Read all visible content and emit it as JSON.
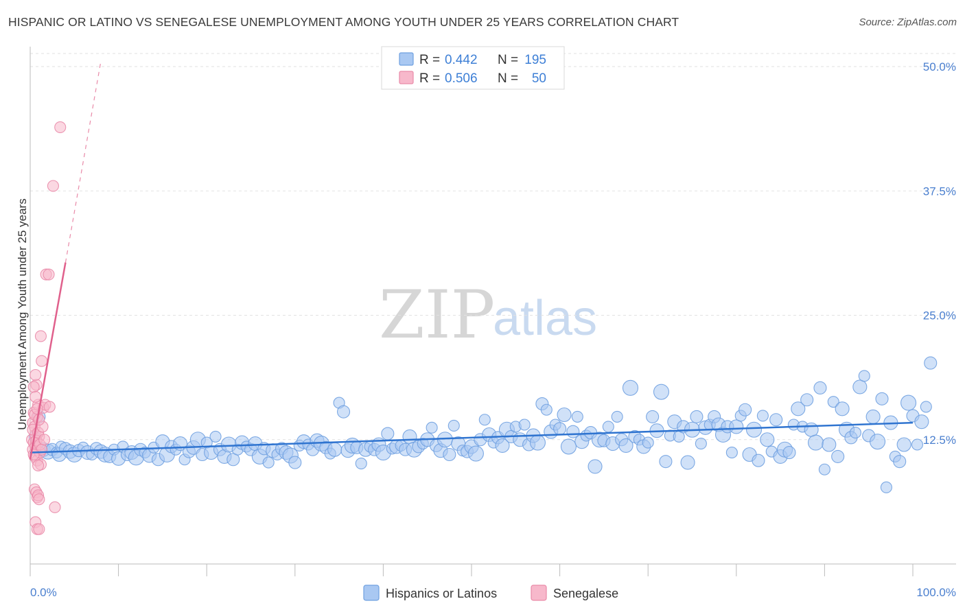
{
  "title": "HISPANIC OR LATINO VS SENEGALESE UNEMPLOYMENT AMONG YOUTH UNDER 25 YEARS CORRELATION CHART",
  "source": "Source: ZipAtlas.com",
  "watermark": {
    "zip": "ZIP",
    "atlas": "atlas"
  },
  "legend": {
    "r_label": "R =",
    "n_label": "N =",
    "rows": [
      {
        "r": "0.442",
        "n": "195",
        "color": "#a9c8f2",
        "stroke": "#6fa0e0"
      },
      {
        "r": "0.506",
        "n": "50",
        "color": "#f7b8cb",
        "stroke": "#e98aa8"
      }
    ]
  },
  "bottom_legend": [
    "Hispanics or Latinos",
    "Senegalese"
  ],
  "chart_data": {
    "type": "scatter",
    "title": "HISPANIC OR LATINO VS SENEGALESE UNEMPLOYMENT AMONG YOUTH UNDER 25 YEARS CORRELATION CHART",
    "xlabel": "",
    "ylabel": "Unemployment Among Youth under 25 years",
    "xlim": [
      0,
      100
    ],
    "ylim": [
      0,
      50
    ],
    "x_tick_labels": [
      "0.0%",
      "100.0%"
    ],
    "y_ticks": [
      12.5,
      25.0,
      37.5,
      50.0
    ],
    "y_tick_labels": [
      "12.5%",
      "25.0%",
      "37.5%",
      "50.0%"
    ],
    "series": [
      {
        "name": "Hispanics or Latinos",
        "color": "#6fa0e0",
        "fill": "#a9c8f2",
        "R": 0.442,
        "N": 195,
        "trend": {
          "x0": 0,
          "y0": 11.2,
          "x1": 100,
          "y1": 14.2
        },
        "points": [
          [
            0.5,
            12.8
          ],
          [
            1,
            14.8
          ],
          [
            1.5,
            11.5
          ],
          [
            2,
            11.3
          ],
          [
            2.5,
            11.5
          ],
          [
            3,
            11.2
          ],
          [
            3.3,
            11.0
          ],
          [
            3.5,
            11.8
          ],
          [
            4,
            11.6
          ],
          [
            4.5,
            11.3
          ],
          [
            5,
            11.0
          ],
          [
            5.5,
            11.4
          ],
          [
            6,
            11.7
          ],
          [
            6.5,
            11.2
          ],
          [
            7,
            11.0
          ],
          [
            7.5,
            11.6
          ],
          [
            8,
            11.3
          ],
          [
            8.5,
            11.0
          ],
          [
            9,
            10.8
          ],
          [
            9.5,
            11.5
          ],
          [
            10,
            10.6
          ],
          [
            10.5,
            11.8
          ],
          [
            11,
            11.0
          ],
          [
            11.5,
            11.2
          ],
          [
            12,
            10.7
          ],
          [
            12.5,
            11.5
          ],
          [
            13,
            11.2
          ],
          [
            13.5,
            10.9
          ],
          [
            14,
            11.7
          ],
          [
            14.5,
            10.5
          ],
          [
            15,
            12.3
          ],
          [
            15.5,
            11.0
          ],
          [
            16,
            11.8
          ],
          [
            16.5,
            11.5
          ],
          [
            17,
            12.1
          ],
          [
            17.5,
            10.5
          ],
          [
            18,
            11.3
          ],
          [
            18.5,
            11.7
          ],
          [
            19,
            12.5
          ],
          [
            19.5,
            11.0
          ],
          [
            20,
            12.2
          ],
          [
            20.5,
            11.2
          ],
          [
            21,
            12.8
          ],
          [
            21.5,
            11.5
          ],
          [
            22,
            10.8
          ],
          [
            22.5,
            12.0
          ],
          [
            23,
            10.5
          ],
          [
            23.5,
            11.5
          ],
          [
            24,
            12.2
          ],
          [
            24.5,
            11.8
          ],
          [
            25,
            11.5
          ],
          [
            25.5,
            12.1
          ],
          [
            26,
            10.8
          ],
          [
            26.5,
            11.6
          ],
          [
            27,
            10.2
          ],
          [
            27.5,
            11.4
          ],
          [
            28,
            11.0
          ],
          [
            28.5,
            11.6
          ],
          [
            29,
            11.2
          ],
          [
            29.5,
            10.9
          ],
          [
            30,
            10.2
          ],
          [
            30.5,
            11.9
          ],
          [
            31,
            12.3
          ],
          [
            31.5,
            12.0
          ],
          [
            32,
            11.5
          ],
          [
            32.5,
            12.4
          ],
          [
            33,
            12.1
          ],
          [
            33.5,
            11.7
          ],
          [
            34,
            11.1
          ],
          [
            34.5,
            11.5
          ],
          [
            35,
            16.2
          ],
          [
            35.5,
            15.3
          ],
          [
            36,
            11.4
          ],
          [
            36.5,
            11.9
          ],
          [
            37,
            11.7
          ],
          [
            37.5,
            10.1
          ],
          [
            38,
            11.5
          ],
          [
            38.5,
            11.8
          ],
          [
            39,
            11.5
          ],
          [
            39.5,
            12.0
          ],
          [
            40,
            11.2
          ],
          [
            40.5,
            13.1
          ],
          [
            41,
            11.6
          ],
          [
            41.5,
            11.8
          ],
          [
            42,
            11.9
          ],
          [
            42.5,
            11.5
          ],
          [
            43,
            12.8
          ],
          [
            43.5,
            11.5
          ],
          [
            44,
            11.8
          ],
          [
            44.5,
            12.1
          ],
          [
            45,
            12.5
          ],
          [
            45.5,
            13.7
          ],
          [
            46,
            11.9
          ],
          [
            46.5,
            11.4
          ],
          [
            47,
            12.5
          ],
          [
            47.5,
            11.0
          ],
          [
            48,
            13.9
          ],
          [
            48.5,
            12.1
          ],
          [
            49,
            11.4
          ],
          [
            49.5,
            11.3
          ],
          [
            50,
            11.8
          ],
          [
            50.5,
            11.1
          ],
          [
            51,
            12.5
          ],
          [
            51.5,
            14.5
          ],
          [
            52,
            13.0
          ],
          [
            52.5,
            12.2
          ],
          [
            53,
            12.7
          ],
          [
            53.5,
            11.9
          ],
          [
            54,
            13.5
          ],
          [
            54.5,
            12.8
          ],
          [
            55,
            13.8
          ],
          [
            55.5,
            12.5
          ],
          [
            56,
            14.0
          ],
          [
            56.5,
            12.0
          ],
          [
            57,
            12.9
          ],
          [
            57.5,
            12.2
          ],
          [
            58,
            16.1
          ],
          [
            58.5,
            15.5
          ],
          [
            59,
            13.3
          ],
          [
            59.5,
            14.0
          ],
          [
            60,
            13.6
          ],
          [
            60.5,
            15.0
          ],
          [
            61,
            11.8
          ],
          [
            61.5,
            13.3
          ],
          [
            62,
            14.8
          ],
          [
            62.5,
            12.3
          ],
          [
            63,
            12.9
          ],
          [
            63.5,
            13.2
          ],
          [
            64,
            9.8
          ],
          [
            64.5,
            12.5
          ],
          [
            65,
            12.4
          ],
          [
            65.5,
            13.8
          ],
          [
            66,
            12.1
          ],
          [
            66.5,
            14.8
          ],
          [
            67,
            12.5
          ],
          [
            67.5,
            11.9
          ],
          [
            68,
            17.7
          ],
          [
            68.5,
            12.8
          ],
          [
            69,
            12.5
          ],
          [
            69.5,
            11.8
          ],
          [
            70,
            12.2
          ],
          [
            70.5,
            14.8
          ],
          [
            71,
            13.4
          ],
          [
            71.5,
            17.3
          ],
          [
            72,
            10.3
          ],
          [
            72.5,
            12.9
          ],
          [
            73,
            14.3
          ],
          [
            73.5,
            12.8
          ],
          [
            74,
            13.8
          ],
          [
            74.5,
            10.2
          ],
          [
            75,
            13.5
          ],
          [
            75.5,
            14.8
          ],
          [
            76,
            12.1
          ],
          [
            76.5,
            13.7
          ],
          [
            77,
            14.0
          ],
          [
            77.5,
            14.8
          ],
          [
            78,
            14.0
          ],
          [
            78.5,
            13.0
          ],
          [
            79,
            13.8
          ],
          [
            79.5,
            11.2
          ],
          [
            80,
            13.8
          ],
          [
            80.5,
            14.9
          ],
          [
            81,
            15.5
          ],
          [
            81.5,
            11.0
          ],
          [
            82,
            13.5
          ],
          [
            82.5,
            10.4
          ],
          [
            83,
            14.9
          ],
          [
            83.5,
            12.5
          ],
          [
            84,
            11.3
          ],
          [
            84.5,
            14.5
          ],
          [
            85,
            10.8
          ],
          [
            85.5,
            11.5
          ],
          [
            86,
            11.2
          ],
          [
            86.5,
            14.0
          ],
          [
            87,
            15.6
          ],
          [
            87.5,
            13.8
          ],
          [
            88,
            16.5
          ],
          [
            88.5,
            13.5
          ],
          [
            89,
            12.2
          ],
          [
            89.5,
            17.7
          ],
          [
            90,
            9.5
          ],
          [
            90.5,
            12.0
          ],
          [
            91,
            16.3
          ],
          [
            91.5,
            10.8
          ],
          [
            92,
            15.6
          ],
          [
            92.5,
            13.5
          ],
          [
            93,
            12.7
          ],
          [
            93.5,
            13.2
          ],
          [
            94,
            17.8
          ],
          [
            94.5,
            18.9
          ],
          [
            95,
            12.9
          ],
          [
            95.5,
            14.8
          ],
          [
            96,
            12.3
          ],
          [
            96.5,
            16.6
          ],
          [
            97,
            7.7
          ],
          [
            97.5,
            14.2
          ],
          [
            98,
            10.8
          ],
          [
            98.5,
            10.3
          ],
          [
            99,
            12.0
          ],
          [
            99.5,
            16.2
          ],
          [
            100,
            14.9
          ],
          [
            100.5,
            12.0
          ],
          [
            101,
            14.3
          ],
          [
            101.5,
            15.8
          ],
          [
            102,
            20.2
          ]
        ]
      },
      {
        "name": "Senegalese",
        "color": "#e98aa8",
        "fill": "#f7b8cb",
        "R": 0.506,
        "N": 50,
        "trend": {
          "x0": 0,
          "y0": 10.5,
          "x1": 4.0,
          "y1": 30.3
        },
        "trend_dashed": {
          "x0": 4.0,
          "y0": 30.3,
          "x1": 8.0,
          "y1": 50.5
        },
        "points": [
          [
            0.2,
            12.5
          ],
          [
            0.3,
            14.2
          ],
          [
            0.4,
            15.2
          ],
          [
            0.5,
            13.8
          ],
          [
            0.6,
            12.0
          ],
          [
            0.7,
            18.0
          ],
          [
            0.3,
            11.5
          ],
          [
            0.5,
            10.8
          ],
          [
            0.6,
            13.0
          ],
          [
            0.8,
            14.8
          ],
          [
            0.9,
            16.0
          ],
          [
            1.0,
            12.8
          ],
          [
            0.4,
            17.8
          ],
          [
            0.6,
            19.0
          ],
          [
            0.8,
            10.4
          ],
          [
            1.1,
            11.2
          ],
          [
            0.5,
            7.5
          ],
          [
            0.7,
            7.2
          ],
          [
            0.8,
            6.7
          ],
          [
            0.9,
            6.9
          ],
          [
            1.0,
            6.5
          ],
          [
            0.6,
            4.2
          ],
          [
            0.8,
            3.5
          ],
          [
            1.0,
            3.5
          ],
          [
            1.2,
            22.9
          ],
          [
            1.3,
            20.4
          ],
          [
            1.5,
            15.7
          ],
          [
            1.7,
            16.0
          ],
          [
            2.2,
            15.8
          ],
          [
            1.8,
            29.1
          ],
          [
            2.1,
            29.1
          ],
          [
            2.6,
            38.0
          ],
          [
            3.4,
            43.9
          ],
          [
            2.8,
            5.7
          ],
          [
            0.3,
            13.5
          ],
          [
            0.4,
            12.2
          ],
          [
            0.6,
            11.8
          ],
          [
            0.7,
            12.4
          ],
          [
            0.9,
            13.2
          ],
          [
            1.1,
            12.0
          ],
          [
            1.3,
            11.5
          ],
          [
            1.4,
            13.8
          ],
          [
            1.6,
            12.5
          ],
          [
            0.5,
            15.0
          ],
          [
            0.8,
            15.6
          ],
          [
            1.2,
            10.0
          ],
          [
            0.9,
            9.9
          ],
          [
            0.4,
            11.0
          ],
          [
            0.6,
            16.8
          ],
          [
            1.0,
            14.5
          ]
        ]
      }
    ]
  }
}
